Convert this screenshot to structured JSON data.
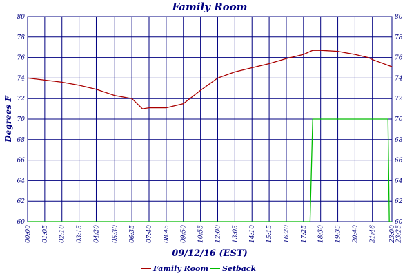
{
  "chart_data": {
    "type": "line",
    "title": "Family Room",
    "x_label": "09/12/16 (EST)",
    "y_label": "Degrees F",
    "xlim": [
      0,
      1380
    ],
    "ylim": [
      60,
      80
    ],
    "xticks": [
      {
        "value": 0,
        "label": "00:00"
      },
      {
        "value": 65,
        "label": "01:05"
      },
      {
        "value": 130,
        "label": "02:10"
      },
      {
        "value": 195,
        "label": "03:15"
      },
      {
        "value": 260,
        "label": "04:20"
      },
      {
        "value": 330,
        "label": "05:30"
      },
      {
        "value": 395,
        "label": "06:35"
      },
      {
        "value": 460,
        "label": "07:40"
      },
      {
        "value": 525,
        "label": "08:45"
      },
      {
        "value": 590,
        "label": "09:50"
      },
      {
        "value": 655,
        "label": "10:55"
      },
      {
        "value": 720,
        "label": "12:00"
      },
      {
        "value": 785,
        "label": "13:05"
      },
      {
        "value": 850,
        "label": "14:10"
      },
      {
        "value": 915,
        "label": "15:15"
      },
      {
        "value": 980,
        "label": "16:20"
      },
      {
        "value": 1045,
        "label": "17:25"
      },
      {
        "value": 1110,
        "label": "18:30"
      },
      {
        "value": 1175,
        "label": "19:35"
      },
      {
        "value": 1240,
        "label": "20:40"
      },
      {
        "value": 1306,
        "label": "21:46"
      },
      {
        "value": 1380,
        "label": "23:00"
      },
      {
        "value": 1405,
        "label": "23:25"
      }
    ],
    "yticks": [
      60,
      62,
      64,
      66,
      68,
      70,
      72,
      74,
      76,
      78,
      80
    ],
    "grid": true,
    "series": [
      {
        "name": "Family Room",
        "color": "#aa0000",
        "x": [
          0,
          65,
          130,
          195,
          260,
          330,
          395,
          435,
          460,
          525,
          590,
          655,
          720,
          785,
          850,
          915,
          980,
          1045,
          1080,
          1110,
          1175,
          1240,
          1290,
          1306,
          1380
        ],
        "values": [
          74.0,
          73.8,
          73.6,
          73.3,
          72.9,
          72.3,
          72.0,
          71.0,
          71.1,
          71.1,
          71.5,
          72.8,
          74.0,
          74.6,
          75.0,
          75.4,
          75.9,
          76.3,
          76.7,
          76.7,
          76.6,
          76.3,
          76.0,
          75.8,
          75.1
        ]
      },
      {
        "name": "Setback",
        "color": "#00bb00",
        "x": [
          0,
          1070,
          1080,
          1365,
          1370,
          1380
        ],
        "values": [
          60,
          60,
          70,
          70,
          60,
          60
        ]
      }
    ]
  }
}
